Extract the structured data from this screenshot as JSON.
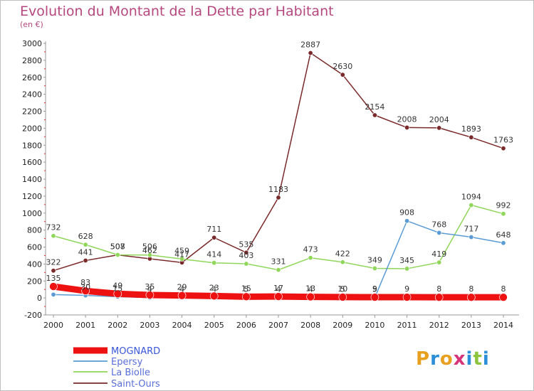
{
  "title": "Evolution du Montant de la Dette par Habitant",
  "subtitle": "(en €)",
  "logo": {
    "letters": [
      "P",
      "r",
      "o",
      "x",
      "i",
      "t",
      "i"
    ],
    "colors": [
      "#e8a020",
      "#2a8fd8",
      "#e8a020",
      "#d6337a",
      "#2a8fd8",
      "#8cc43c",
      "#2a8fd8"
    ]
  },
  "chart_data": {
    "type": "line",
    "x": [
      "2000",
      "2001",
      "2002",
      "2003",
      "2004",
      "2005",
      "2006",
      "2007",
      "2008",
      "2009",
      "2010",
      "2011",
      "2012",
      "2013",
      "2014"
    ],
    "ylim": [
      -200,
      3000
    ],
    "yticks": [
      -200,
      0,
      200,
      400,
      600,
      800,
      1000,
      1200,
      1400,
      1600,
      1800,
      2000,
      2200,
      2400,
      2600,
      2800,
      3000
    ],
    "grid": false,
    "legend": "bottom-left",
    "series": [
      {
        "name": "MOGNARD",
        "color": "#ee1111",
        "width": 9,
        "values": [
          135,
          83,
          49,
          35,
          29,
          23,
          15,
          17,
          13,
          10,
          9,
          9,
          8,
          8,
          8
        ],
        "labels": [
          "135",
          "83",
          "49",
          "35",
          "29",
          "23",
          "15",
          "17",
          "13",
          "10",
          "9",
          "9",
          "8",
          "8",
          "8"
        ]
      },
      {
        "name": "Epersy",
        "color": "#5a9bd4",
        "width": 1.5,
        "values": [
          40,
          30,
          15,
          4,
          4,
          4,
          5,
          4,
          4,
          5,
          5,
          908,
          768,
          717,
          648
        ],
        "labels": [
          "",
          "30",
          "15",
          "4",
          "4",
          "4",
          "5",
          "4",
          "4",
          "5",
          "5",
          "908",
          "768",
          "717",
          "648"
        ]
      },
      {
        "name": "La Biolle",
        "color": "#8fd65a",
        "width": 1.5,
        "values": [
          732,
          628,
          508,
          506,
          459,
          414,
          403,
          331,
          473,
          422,
          349,
          345,
          419,
          1094,
          992
        ],
        "labels": [
          "732",
          "628",
          "508",
          "506",
          "459",
          "414",
          "403",
          "331",
          "473",
          "422",
          "349",
          "345",
          "419",
          "1094",
          "992"
        ]
      },
      {
        "name": "Saint-Ours",
        "color": "#7a2a2a",
        "width": 1.5,
        "values": [
          322,
          441,
          507,
          462,
          417,
          711,
          535,
          1183,
          2887,
          2630,
          2154,
          2008,
          2004,
          1893,
          1763
        ],
        "labels": [
          "322",
          "441",
          "507",
          "462",
          "417",
          "711",
          "535",
          "1183",
          "2887",
          "2630",
          "2154",
          "2008",
          "2004",
          "1893",
          "1763"
        ]
      }
    ]
  }
}
